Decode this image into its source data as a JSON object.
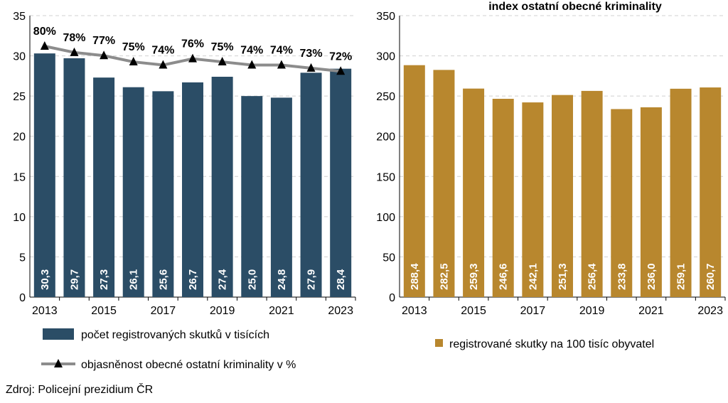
{
  "source": "Zdroj: Policejní prezidium ČR",
  "colors": {
    "left_bar": "#2b4d66",
    "right_bar": "#b8872e",
    "line": "#8c8c8c",
    "marker": "#000000",
    "grid": "#d0d0d0"
  },
  "chart_data": [
    {
      "type": "bar",
      "title": "",
      "x": [
        "2013",
        "2014",
        "2015",
        "2016",
        "2017",
        "2018",
        "2019",
        "2020",
        "2021",
        "2022",
        "2023"
      ],
      "xtick_labels": [
        "2013",
        "2015",
        "2017",
        "2019",
        "2021",
        "2023"
      ],
      "ylim": [
        0,
        35
      ],
      "yticks": [
        "0",
        "5",
        "10",
        "15",
        "20",
        "25",
        "30",
        "35"
      ],
      "grid": true,
      "legend_position": "bottom",
      "series": [
        {
          "name": "počet registrovaných skutků v tisících",
          "type": "bar",
          "values": [
            30.3,
            29.7,
            27.3,
            26.1,
            25.6,
            26.7,
            27.4,
            25.0,
            24.8,
            27.9,
            28.4
          ],
          "labels": [
            "30,3",
            "29,7",
            "27,3",
            "26,1",
            "25,6",
            "26,7",
            "27,4",
            "25,0",
            "24,8",
            "27,9",
            "28,4"
          ]
        },
        {
          "name": "objasněnost obecné ostatní kriminality v %",
          "type": "line",
          "values": [
            80,
            78,
            77,
            75,
            74,
            76,
            75,
            74,
            74,
            73,
            72
          ],
          "labels": [
            "80%",
            "78%",
            "77%",
            "75%",
            "74%",
            "76%",
            "75%",
            "74%",
            "74%",
            "73%",
            "72%"
          ]
        }
      ]
    },
    {
      "type": "bar",
      "title": "index ostatní obecné kriminality",
      "x": [
        "2013",
        "2014",
        "2015",
        "2016",
        "2017",
        "2018",
        "2019",
        "2020",
        "2021",
        "2022",
        "2023"
      ],
      "xtick_labels": [
        "2013",
        "2015",
        "2017",
        "2019",
        "2021",
        "2023"
      ],
      "ylim": [
        0,
        350
      ],
      "yticks": [
        "0",
        "50",
        "100",
        "150",
        "200",
        "250",
        "300",
        "350"
      ],
      "grid": true,
      "legend_position": "bottom",
      "series": [
        {
          "name": "registrované skutky na 100 tisíc obyvatel",
          "type": "bar",
          "values": [
            288.4,
            282.5,
            259.3,
            246.6,
            242.1,
            251.3,
            256.4,
            233.8,
            236.0,
            259.1,
            260.7
          ],
          "labels": [
            "288,4",
            "282,5",
            "259,3",
            "246,6",
            "242,1",
            "251,3",
            "256,4",
            "233,8",
            "236,0",
            "259,1",
            "260,7"
          ]
        }
      ]
    }
  ]
}
